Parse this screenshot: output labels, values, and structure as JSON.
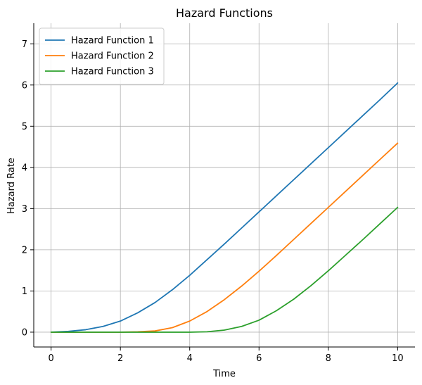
{
  "chart_data": {
    "type": "line",
    "title": "Hazard Functions",
    "xlabel": "Time",
    "ylabel": "Hazard Rate",
    "xlim": [
      -0.5,
      10.5
    ],
    "ylim": [
      -0.36,
      7.5
    ],
    "x_ticks": [
      0,
      2,
      4,
      6,
      8,
      10
    ],
    "y_ticks": [
      0,
      1,
      2,
      3,
      4,
      5,
      6,
      7
    ],
    "grid": true,
    "legend_position": "upper-left",
    "series": [
      {
        "name": "Hazard Function 1",
        "color": "#1f77b4",
        "x": [
          0,
          0.5,
          1,
          1.5,
          2,
          2.5,
          3,
          3.5,
          4,
          4.5,
          5,
          5.5,
          6,
          6.5,
          7,
          7.5,
          8,
          8.5,
          9,
          9.5,
          10
        ],
        "y": [
          0.0,
          0.02,
          0.06,
          0.14,
          0.27,
          0.47,
          0.72,
          1.03,
          1.38,
          1.76,
          2.14,
          2.53,
          2.92,
          3.31,
          3.7,
          4.09,
          4.48,
          4.87,
          5.26,
          5.65,
          6.05
        ]
      },
      {
        "name": "Hazard Function 2",
        "color": "#ff7f0e",
        "x": [
          0,
          0.5,
          1,
          1.5,
          2,
          2.5,
          3,
          3.5,
          4,
          4.5,
          5,
          5.5,
          6,
          6.5,
          7,
          7.5,
          8,
          8.5,
          9,
          9.5,
          10
        ],
        "y": [
          0.0,
          0.0,
          0.0,
          0.0,
          0.0,
          0.01,
          0.03,
          0.11,
          0.27,
          0.5,
          0.79,
          1.12,
          1.48,
          1.86,
          2.25,
          2.64,
          3.03,
          3.42,
          3.81,
          4.2,
          4.59
        ]
      },
      {
        "name": "Hazard Function 3",
        "color": "#2ca02c",
        "x": [
          0,
          0.5,
          1,
          1.5,
          2,
          2.5,
          3,
          3.5,
          4,
          4.5,
          5,
          5.5,
          6,
          6.5,
          7,
          7.5,
          8,
          8.5,
          9,
          9.5,
          10
        ],
        "y": [
          0.0,
          0.0,
          0.0,
          0.0,
          0.0,
          0.0,
          0.0,
          0.0,
          0.0,
          0.01,
          0.05,
          0.14,
          0.29,
          0.52,
          0.8,
          1.13,
          1.49,
          1.87,
          2.25,
          2.64,
          3.03
        ]
      }
    ]
  }
}
